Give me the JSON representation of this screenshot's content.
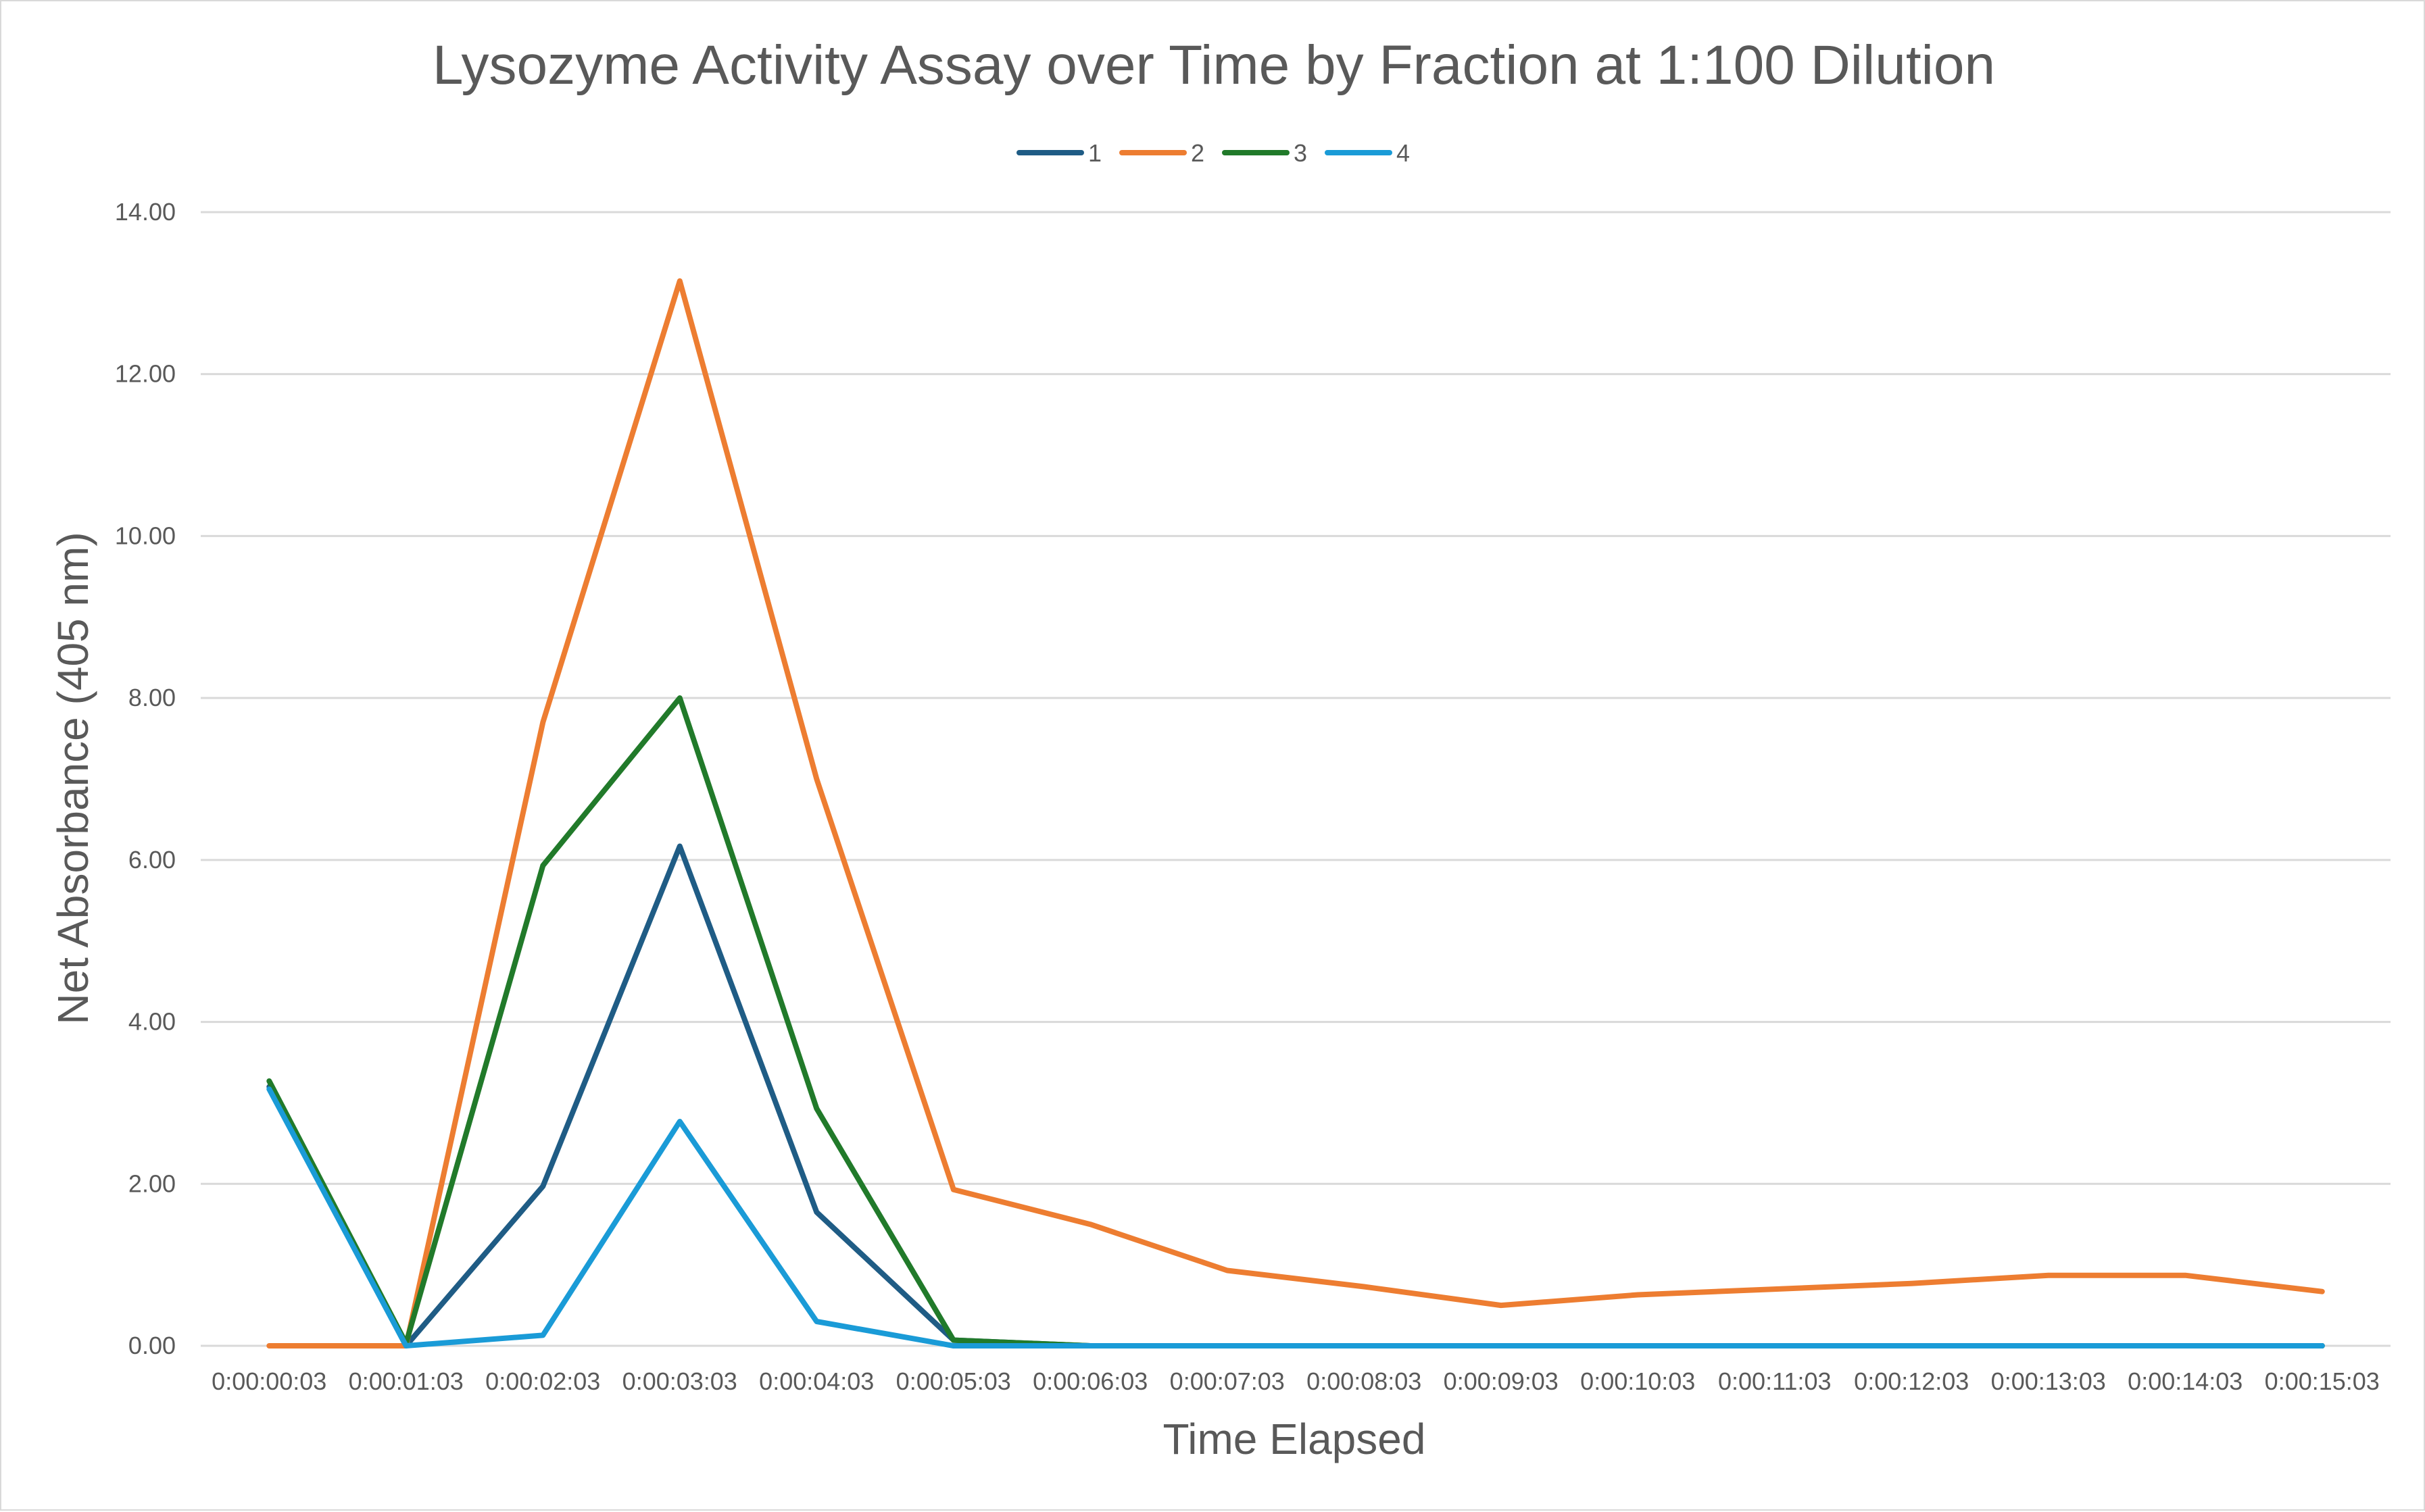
{
  "chart_data": {
    "type": "line",
    "title": "Lysozyme Activity Assay over Time by Fraction at 1:100 Dilution",
    "xlabel": "Time Elapsed",
    "ylabel": "Net Absorbance (405 nm)",
    "ylim": [
      0,
      14
    ],
    "yticks": [
      "0.00",
      "2.00",
      "4.00",
      "6.00",
      "8.00",
      "10.00",
      "12.00",
      "14.00"
    ],
    "yticks_values": [
      0,
      2,
      4,
      6,
      8,
      10,
      12,
      14
    ],
    "grid": true,
    "legend_position": "top",
    "categories": [
      "0:00:00:03",
      "0:00:01:03",
      "0:00:02:03",
      "0:00:03:03",
      "0:00:04:03",
      "0:00:05:03",
      "0:00:06:03",
      "0:00:07:03",
      "0:00:08:03",
      "0:00:09:03",
      "0:00:10:03",
      "0:00:11:03",
      "0:00:12:03",
      "0:00:13:03",
      "0:00:14:03",
      "0:00:15:03"
    ],
    "series": [
      {
        "name": "1",
        "color": "#1f5c85",
        "values": [
          3.2,
          0.0,
          1.97,
          6.17,
          1.65,
          0.07,
          0.0,
          0.0,
          0.0,
          0.0,
          0.0,
          0.0,
          0.0,
          0.0,
          0.0,
          0.0
        ]
      },
      {
        "name": "2",
        "color": "#ed7d31",
        "values": [
          0.0,
          0.0,
          7.7,
          13.15,
          7.0,
          1.93,
          1.5,
          0.93,
          0.73,
          0.5,
          0.63,
          0.7,
          0.77,
          0.87,
          0.87,
          0.67
        ]
      },
      {
        "name": "3",
        "color": "#217a2a",
        "values": [
          3.27,
          0.03,
          5.93,
          8.0,
          2.93,
          0.07,
          0.0,
          0.0,
          0.0,
          0.0,
          0.0,
          0.0,
          0.0,
          0.0,
          0.0,
          0.0
        ]
      },
      {
        "name": "4",
        "color": "#1a9bd7",
        "values": [
          3.17,
          0.0,
          0.13,
          2.77,
          0.3,
          0.0,
          0.0,
          0.0,
          0.0,
          0.0,
          0.0,
          0.0,
          0.0,
          0.0,
          0.0,
          0.0
        ]
      }
    ]
  }
}
